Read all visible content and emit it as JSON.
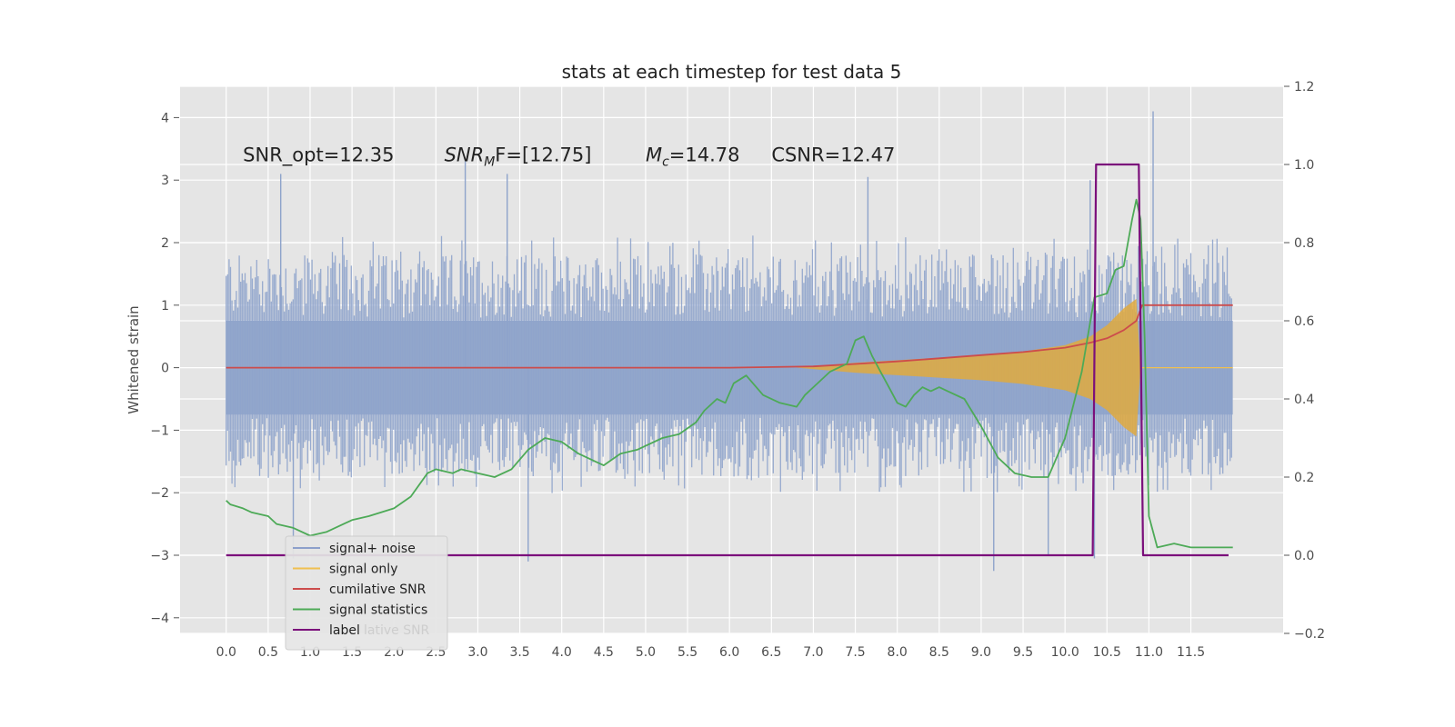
{
  "chart_data": {
    "type": "line",
    "title": "stats at each timestep for test data 5",
    "ylabel": "Whitened strain",
    "y2label": "",
    "xlabel": "",
    "xlim": [
      -0.55,
      12.6
    ],
    "ylim": [
      -4.25,
      4.5
    ],
    "y2lim": [
      -0.2,
      1.2
    ],
    "x_ticks": [
      "0.0",
      "0.5",
      "1.0",
      "1.5",
      "2.0",
      "2.5",
      "3.0",
      "3.5",
      "4.0",
      "4.5",
      "5.0",
      "5.5",
      "6.0",
      "6.5",
      "7.0",
      "7.5",
      "8.0",
      "8.5",
      "9.0",
      "9.5",
      "10.0",
      "10.5",
      "11.0",
      "11.5"
    ],
    "y_ticks": [
      "4",
      "3",
      "2",
      "1",
      "0",
      "−1",
      "−2",
      "−3",
      "−4"
    ],
    "y2_ticks": [
      "1.2",
      "1.0",
      "0.8",
      "0.6",
      "0.4",
      "0.2",
      "0.0",
      "−0.2"
    ],
    "grid": true,
    "annotations": [
      {
        "text": "SNR_opt=12.35",
        "x": 0.2,
        "y": 3.3
      },
      {
        "text_main": "SNR",
        "text_sub": "M",
        "text_tail": "F=[12.75]",
        "x": 2.6,
        "y": 3.3
      },
      {
        "text_main": "M",
        "text_sub": "c",
        "text_tail": "=14.78",
        "x": 5.0,
        "y": 3.3
      },
      {
        "text": "CSNR=12.47",
        "x": 6.5,
        "y": 3.3
      }
    ],
    "legend": {
      "placement": "lower-left",
      "entries": [
        {
          "label": "signal+ noise",
          "color": "#8da0cb"
        },
        {
          "label": "signal only",
          "color": "#f0c050"
        },
        {
          "label": "cumilative SNR",
          "color": "#cc4c4c"
        },
        {
          "label": "signal statistics",
          "color": "#4daa57"
        },
        {
          "label": "label",
          "color": "#7b0f7b"
        }
      ],
      "ghost_text": "lative SNR"
    },
    "series": [
      {
        "name": "signal+ noise",
        "axis": "left",
        "style": "noise-band",
        "x_range": [
          0.0,
          12.0
        ],
        "typical_envelope": [
          -1.9,
          2.0
        ],
        "notable_peaks": [
          {
            "x": 0.65,
            "y": 3.1
          },
          {
            "x": 2.85,
            "y": 3.3
          },
          {
            "x": 3.35,
            "y": 3.1
          },
          {
            "x": 7.65,
            "y": 3.05
          },
          {
            "x": 10.3,
            "y": 3.0
          },
          {
            "x": 11.05,
            "y": 4.1
          },
          {
            "x": 0.8,
            "y": -3.05
          },
          {
            "x": 3.6,
            "y": -3.1
          },
          {
            "x": 9.15,
            "y": -3.25
          },
          {
            "x": 10.35,
            "y": -3.05
          },
          {
            "x": 9.8,
            "y": -3.0
          }
        ]
      },
      {
        "name": "signal only",
        "axis": "left",
        "style": "chirp",
        "x": [
          6.8,
          7.5,
          8.0,
          8.5,
          9.0,
          9.5,
          10.0,
          10.3,
          10.5,
          10.7,
          10.85,
          10.9,
          11.0,
          12.0
        ],
        "envelope": [
          0.0,
          0.08,
          0.12,
          0.16,
          0.2,
          0.26,
          0.36,
          0.5,
          0.68,
          0.95,
          1.1,
          0.0,
          0.0,
          0.0
        ]
      },
      {
        "name": "cumilative SNR",
        "axis": "left",
        "x": [
          0.0,
          5.0,
          6.0,
          7.0,
          7.5,
          8.0,
          8.5,
          9.0,
          9.5,
          10.0,
          10.3,
          10.5,
          10.7,
          10.85,
          10.92,
          12.0
        ],
        "y": [
          0.0,
          0.0,
          0.0,
          0.02,
          0.06,
          0.1,
          0.15,
          0.2,
          0.25,
          0.32,
          0.4,
          0.47,
          0.6,
          0.75,
          1.0,
          1.0
        ]
      },
      {
        "name": "signal statistics",
        "axis": "right",
        "x": [
          0.0,
          0.05,
          0.2,
          0.3,
          0.5,
          0.6,
          0.8,
          1.0,
          1.2,
          1.5,
          1.7,
          2.0,
          2.2,
          2.4,
          2.5,
          2.7,
          2.8,
          3.0,
          3.2,
          3.4,
          3.6,
          3.8,
          4.0,
          4.2,
          4.4,
          4.5,
          4.7,
          4.9,
          5.0,
          5.2,
          5.4,
          5.6,
          5.7,
          5.85,
          5.95,
          6.05,
          6.2,
          6.4,
          6.6,
          6.8,
          6.9,
          7.0,
          7.2,
          7.4,
          7.5,
          7.6,
          7.7,
          7.8,
          7.9,
          8.0,
          8.1,
          8.2,
          8.3,
          8.4,
          8.5,
          8.6,
          8.8,
          9.0,
          9.2,
          9.4,
          9.6,
          9.8,
          10.0,
          10.2,
          10.35,
          10.5,
          10.6,
          10.7,
          10.8,
          10.85,
          10.9,
          10.95,
          11.0,
          11.1,
          11.3,
          11.5,
          12.0
        ],
        "y": [
          0.14,
          0.13,
          0.12,
          0.11,
          0.1,
          0.08,
          0.07,
          0.05,
          0.06,
          0.09,
          0.1,
          0.12,
          0.15,
          0.21,
          0.22,
          0.21,
          0.22,
          0.21,
          0.2,
          0.22,
          0.27,
          0.3,
          0.29,
          0.26,
          0.24,
          0.23,
          0.26,
          0.27,
          0.28,
          0.3,
          0.31,
          0.34,
          0.37,
          0.4,
          0.39,
          0.44,
          0.46,
          0.41,
          0.39,
          0.38,
          0.41,
          0.43,
          0.47,
          0.49,
          0.55,
          0.56,
          0.51,
          0.47,
          0.43,
          0.39,
          0.38,
          0.41,
          0.43,
          0.42,
          0.43,
          0.42,
          0.4,
          0.33,
          0.25,
          0.21,
          0.2,
          0.2,
          0.3,
          0.47,
          0.66,
          0.67,
          0.73,
          0.74,
          0.86,
          0.91,
          0.86,
          0.55,
          0.1,
          0.02,
          0.03,
          0.02,
          0.02
        ]
      },
      {
        "name": "label",
        "axis": "right",
        "x": [
          0.0,
          10.33,
          10.37,
          10.88,
          10.93,
          11.95
        ],
        "y": [
          0.0,
          0.0,
          1.0,
          1.0,
          0.0,
          0.0
        ]
      }
    ]
  }
}
